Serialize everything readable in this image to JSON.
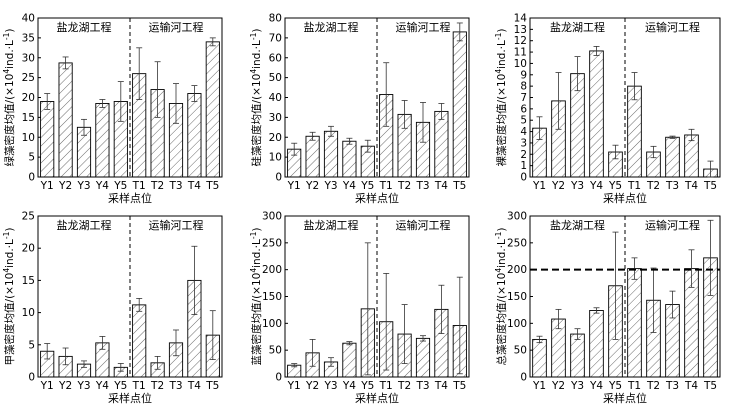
{
  "figure": {
    "categories": [
      "Y1",
      "Y2",
      "Y3",
      "Y4",
      "Y5",
      "T1",
      "T2",
      "T3",
      "T4",
      "T5"
    ],
    "region_left": "盐龙湖工程",
    "region_right": "运输河工程",
    "xlabel": "采样点位",
    "unit_prefix": "/(×10",
    "unit_exp": "4",
    "unit_suffix": "ind.·L",
    "unit_neg_exp": "-1",
    "unit_close": ")",
    "threshold_line_color": "#000000",
    "bar_stroke": "#000000",
    "hatch_color": "#444444"
  },
  "chart_data": [
    {
      "type": "bar",
      "title": "",
      "ylabel_main": "绿藻密度均值",
      "categories": [
        "Y1",
        "Y2",
        "Y3",
        "Y4",
        "Y5",
        "T1",
        "T2",
        "T3",
        "T4",
        "T5"
      ],
      "values": [
        19.0,
        28.7,
        12.5,
        18.5,
        19.0,
        26.0,
        22.0,
        18.5,
        21.0,
        34.0
      ],
      "errors": [
        2.0,
        1.5,
        2.0,
        1.0,
        5.0,
        6.5,
        7.0,
        5.0,
        2.0,
        1.0
      ],
      "ylim": [
        0,
        40
      ],
      "yticks": [
        0,
        5,
        10,
        15,
        20,
        25,
        30,
        35,
        40
      ]
    },
    {
      "type": "bar",
      "title": "",
      "ylabel_main": "硅藻密度均值",
      "categories": [
        "Y1",
        "Y2",
        "Y3",
        "Y4",
        "Y5",
        "T1",
        "T2",
        "T3",
        "T4",
        "T5"
      ],
      "values": [
        14.0,
        20.5,
        23.0,
        18.0,
        15.5,
        41.5,
        31.5,
        27.5,
        33.0,
        73.0
      ],
      "errors": [
        3.0,
        2.0,
        2.5,
        1.5,
        3.0,
        16.0,
        7.0,
        10.0,
        4.0,
        4.5
      ],
      "ylim": [
        0,
        80
      ],
      "yticks": [
        0,
        10,
        20,
        30,
        40,
        50,
        60,
        70,
        80
      ]
    },
    {
      "type": "bar",
      "title": "",
      "ylabel_main": "裸藻密度均值",
      "categories": [
        "Y1",
        "Y2",
        "Y3",
        "Y4",
        "Y5",
        "T1",
        "T2",
        "T3",
        "T4",
        "T5"
      ],
      "values": [
        4.3,
        6.7,
        9.1,
        11.1,
        2.2,
        8.0,
        2.2,
        3.5,
        3.7,
        0.7
      ],
      "errors": [
        1.0,
        2.5,
        1.5,
        0.4,
        0.6,
        1.2,
        0.5,
        0.1,
        0.5,
        0.7
      ],
      "ylim": [
        0,
        14
      ],
      "yticks": [
        0,
        1,
        2,
        3,
        4,
        5,
        6,
        7,
        8,
        9,
        10,
        11,
        12,
        13,
        14
      ]
    },
    {
      "type": "bar",
      "title": "",
      "ylabel_main": "甲藻密度均值",
      "categories": [
        "Y1",
        "Y2",
        "Y3",
        "Y4",
        "Y5",
        "T1",
        "T2",
        "T3",
        "T4",
        "T5"
      ],
      "values": [
        4.0,
        3.2,
        2.0,
        5.3,
        1.5,
        11.2,
        2.2,
        5.3,
        15.0,
        6.5
      ],
      "errors": [
        1.2,
        1.3,
        0.5,
        1.0,
        0.6,
        1.0,
        1.0,
        2.0,
        5.3,
        3.8
      ],
      "ylim": [
        0,
        25
      ],
      "yticks": [
        0,
        5,
        10,
        15,
        20,
        25
      ]
    },
    {
      "type": "bar",
      "title": "",
      "ylabel_main": "蓝藻密度均值",
      "categories": [
        "Y1",
        "Y2",
        "Y3",
        "Y4",
        "Y5",
        "T1",
        "T2",
        "T3",
        "T4",
        "T5"
      ],
      "values": [
        22,
        45,
        28,
        63,
        127,
        103,
        80,
        72,
        126,
        96
      ],
      "errors": [
        3,
        25,
        8,
        3,
        123,
        90,
        55,
        5,
        45,
        90
      ],
      "ylim": [
        0,
        300
      ],
      "yticks": [
        0,
        50,
        100,
        150,
        200,
        250,
        300
      ]
    },
    {
      "type": "bar",
      "title": "",
      "ylabel_main": "总藻密度均值",
      "categories": [
        "Y1",
        "Y2",
        "Y3",
        "Y4",
        "Y5",
        "T1",
        "T2",
        "T3",
        "T4",
        "T5"
      ],
      "values": [
        70,
        108,
        80,
        124,
        170,
        202,
        143,
        135,
        202,
        222
      ],
      "errors": [
        6,
        18,
        10,
        5,
        100,
        20,
        60,
        25,
        35,
        70
      ],
      "ylim": [
        0,
        300
      ],
      "yticks": [
        0,
        50,
        100,
        150,
        200,
        250,
        300
      ],
      "reference_line": 200
    }
  ]
}
